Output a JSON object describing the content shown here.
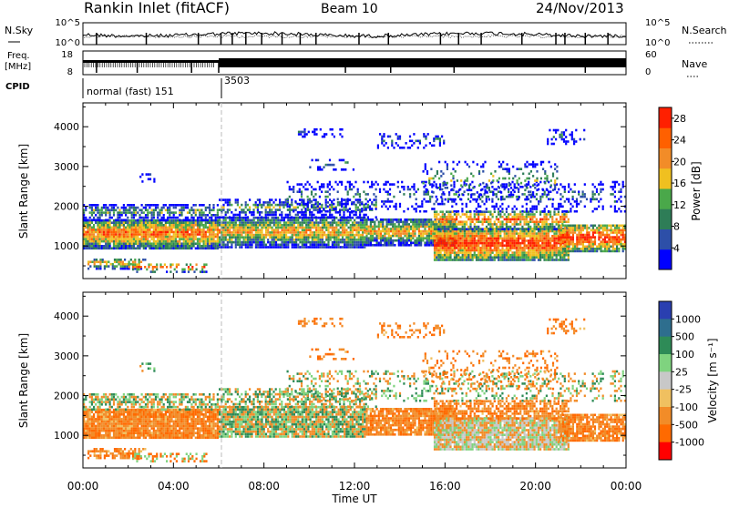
{
  "header": {
    "station": "Rankin Inlet (fitACF)",
    "beam": "Beam 10",
    "date": "24/Nov/2013"
  },
  "noise_panel": {
    "left_label": "N.Sky",
    "right_label": "N.Search",
    "left_ticks": [
      "10^5",
      "10^0"
    ],
    "right_ticks": [
      "10^5",
      "10^0"
    ]
  },
  "freq_panel": {
    "left_label_line1": "Freq.",
    "left_label_line2": "[MHz]",
    "left_ticks": [
      "18",
      "8"
    ],
    "right_ticks": [
      "60",
      "0"
    ],
    "right_label": "Nave"
  },
  "cpid_panel": {
    "label": "CPID",
    "modes": [
      {
        "name": "normal (fast) 151",
        "start_hour": 0
      },
      {
        "name": "3503",
        "start_hour": 6.0
      }
    ]
  },
  "colors": {
    "power_scale": [
      "#0000ff",
      "#2d4fa8",
      "#2e7d57",
      "#4aa84a",
      "#f0c020",
      "#f28c28",
      "#ff6000",
      "#ff2000"
    ],
    "velocity_scale": [
      "#2a3fb0",
      "#2e6e8e",
      "#2e8b57",
      "#7fd37f",
      "#c8c8c8",
      "#f0c060",
      "#f28c28",
      "#ff6a00",
      "#ff0000"
    ]
  },
  "chart_data": [
    {
      "type": "heatmap",
      "name": "Power",
      "xlabel": "",
      "ylabel": "Slant Range [km]",
      "x_ticks": [
        "00:00",
        "04:00",
        "08:00",
        "12:00",
        "16:00",
        "20:00",
        "00:00"
      ],
      "xlim": [
        0,
        24
      ],
      "ylim": [
        180,
        4600
      ],
      "y_ticks": [
        1000,
        2000,
        3000,
        4000
      ],
      "colorbar": {
        "label": "Power [dB]",
        "ticks": [
          4,
          8,
          12,
          16,
          20,
          24,
          28
        ],
        "range": [
          0,
          30
        ]
      }
    },
    {
      "type": "heatmap",
      "name": "Velocity",
      "xlabel": "Time UT",
      "ylabel": "Slant Range [km]",
      "x_ticks": [
        "00:00",
        "04:00",
        "08:00",
        "12:00",
        "16:00",
        "20:00",
        "00:00"
      ],
      "xlim": [
        0,
        24
      ],
      "ylim": [
        180,
        4600
      ],
      "y_ticks": [
        1000,
        2000,
        3000,
        4000
      ],
      "colorbar": {
        "label": "Velocity [m s⁻¹]",
        "ticks": [
          1000,
          500,
          100,
          25,
          -25,
          -100,
          -500,
          -1000
        ]
      }
    }
  ]
}
